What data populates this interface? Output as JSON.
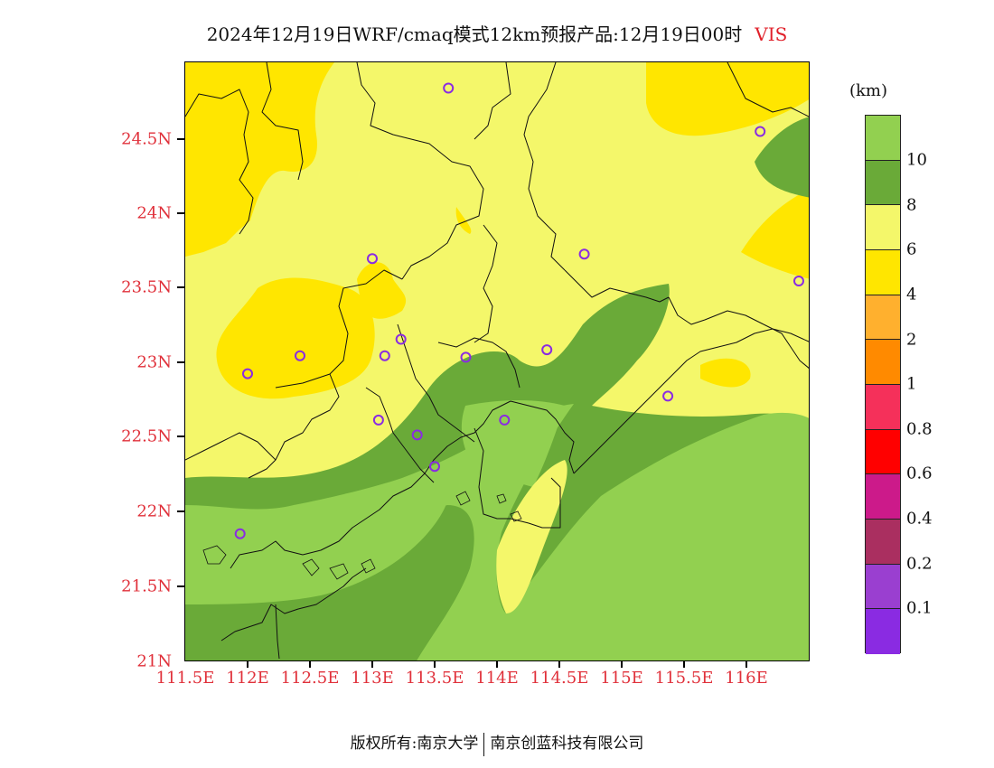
{
  "title": "2024年12月19日WRF/cmaq模式12km预报产品:12月19日00时",
  "variable": "VIS",
  "unit": "(km)",
  "axes": {
    "lat_ticks": [
      "24.5N",
      "24N",
      "23.5N",
      "23N",
      "22.5N",
      "22N",
      "21.5N",
      "21N"
    ],
    "lon_ticks": [
      "111.5E",
      "112E",
      "112.5E",
      "113E",
      "113.5E",
      "114E",
      "114.5E",
      "115E",
      "115.5E",
      "116E"
    ]
  },
  "legend": {
    "labels": [
      "10",
      "8",
      "6",
      "4",
      "2",
      "1",
      "0.8",
      "0.6",
      "0.4",
      "0.2",
      "0.1"
    ],
    "colors": [
      "#92d050",
      "#6aaa38",
      "#f4f76a",
      "#ffe600",
      "#ffb02e",
      "#ff8a00",
      "#f5305a",
      "#ff0000",
      "#cc1a8a",
      "#aa2f60",
      "#9a3fd0",
      "#8a2be2"
    ]
  },
  "footer": {
    "left": "版权所有:南京大学",
    "right": "南京创蓝科技有限公司"
  },
  "colors": {
    "v10": "#92d050",
    "v8": "#6aaa38",
    "v6": "#f4f76a",
    "v4": "#ffe600",
    "tick_label": "#e0303a",
    "station": "#8a2be2"
  },
  "chart_data": {
    "type": "heatmap",
    "lon_range": [
      111.5,
      116.5
    ],
    "lat_range": [
      21.0,
      25.0
    ],
    "stations": [
      [
        113.61,
        24.84
      ],
      [
        116.11,
        24.55
      ],
      [
        113.0,
        23.7
      ],
      [
        114.7,
        23.73
      ],
      [
        116.42,
        23.55
      ],
      [
        113.23,
        23.16
      ],
      [
        113.1,
        23.05
      ],
      [
        112.42,
        23.05
      ],
      [
        113.75,
        23.04
      ],
      [
        114.4,
        23.09
      ],
      [
        112.0,
        22.93
      ],
      [
        115.37,
        22.78
      ],
      [
        113.05,
        22.62
      ],
      [
        114.06,
        22.62
      ],
      [
        113.36,
        22.52
      ],
      [
        113.5,
        22.31
      ],
      [
        111.94,
        21.86
      ]
    ]
  }
}
